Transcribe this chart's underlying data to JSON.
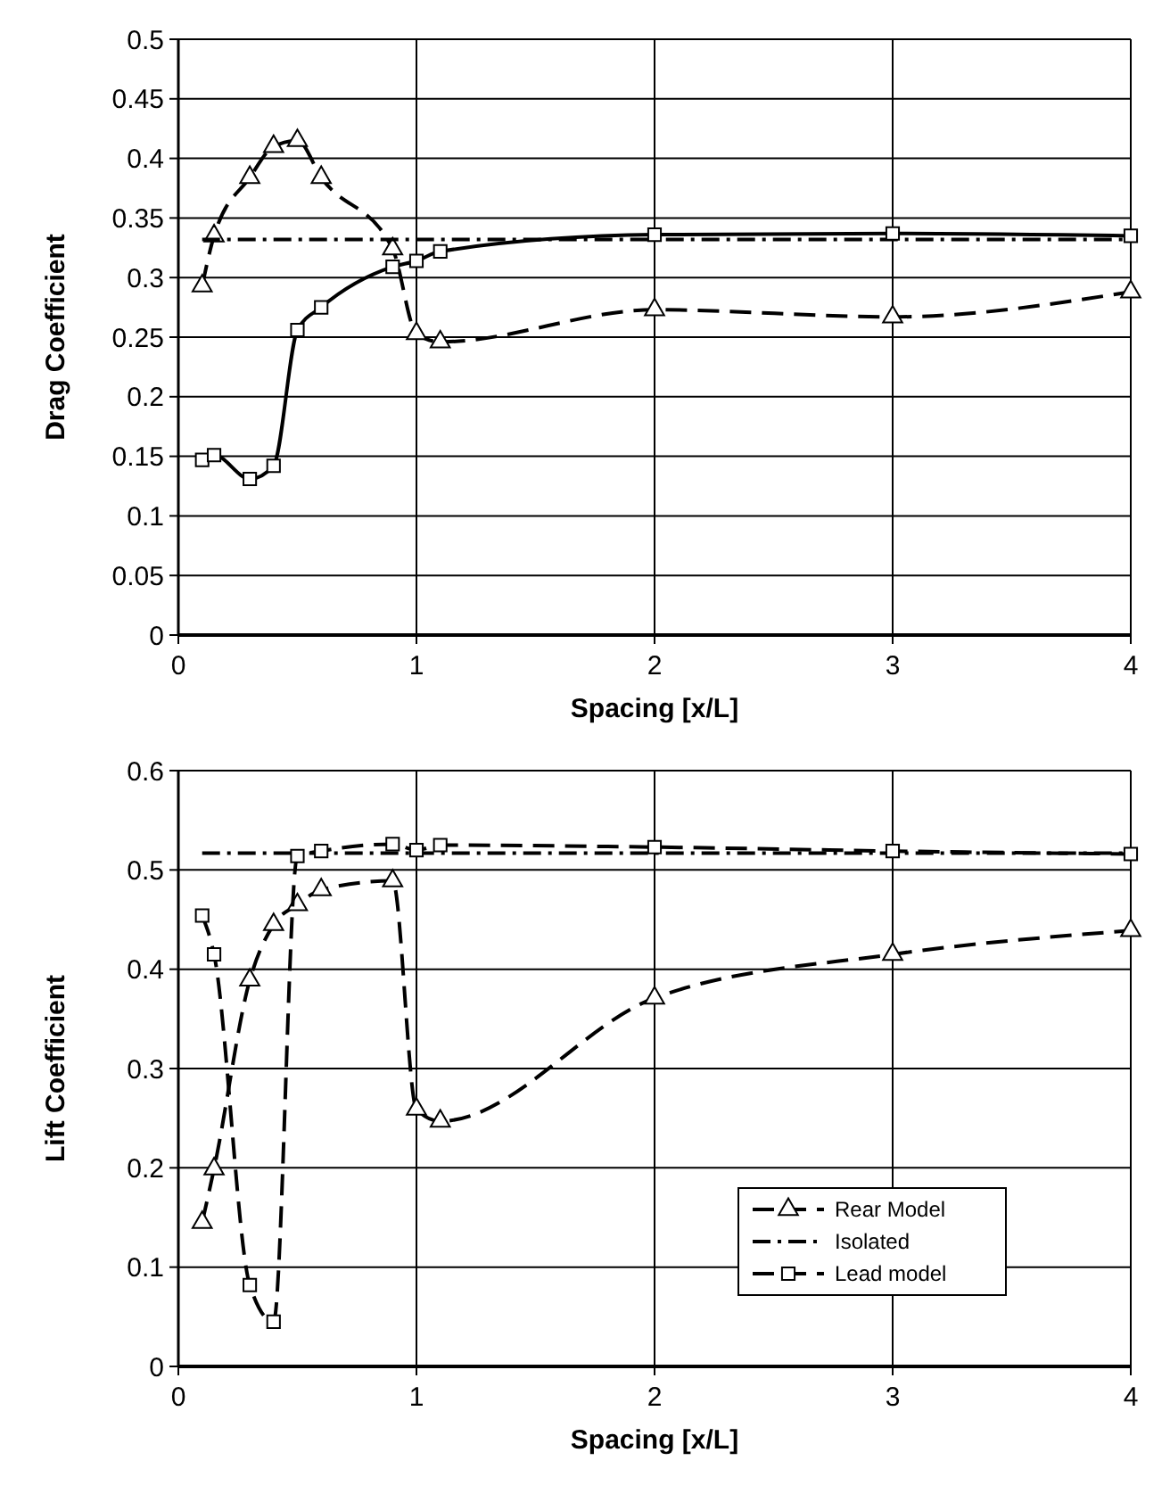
{
  "chart_data": [
    {
      "type": "line",
      "xlabel": "Spacing [x/L]",
      "ylabel": "Drag Coefficient",
      "xlim": [
        0,
        4
      ],
      "xticks": [
        0,
        1,
        2,
        3,
        4
      ],
      "ylim": [
        0,
        0.5
      ],
      "yticks": [
        0,
        0.05,
        0.1,
        0.15,
        0.2,
        0.25,
        0.3,
        0.35,
        0.4,
        0.45,
        0.5
      ],
      "grid": true,
      "legend": false,
      "series": [
        {
          "color": "#000000",
          "marker": "triangle",
          "line_style": "dashed",
          "x": [
            0.1,
            0.15,
            0.3,
            0.4,
            0.5,
            0.6,
            0.9,
            1,
            1.1,
            2,
            3,
            4
          ],
          "values": [
            0.293,
            0.335,
            0.384,
            0.41,
            0.415,
            0.384,
            0.324,
            0.253,
            0.246,
            0.273,
            0.267,
            0.288
          ]
        },
        {
          "color": "#000000",
          "marker": "none",
          "line_style": "dashdot",
          "x": [
            0.1,
            4
          ],
          "values": [
            0.332,
            0.332
          ]
        },
        {
          "color": "#000000",
          "marker": "square",
          "line_style": "solid",
          "x": [
            0.1,
            0.15,
            0.3,
            0.4,
            0.5,
            0.6,
            0.9,
            1,
            1.1,
            2,
            3,
            4
          ],
          "values": [
            0.147,
            0.151,
            0.131,
            0.142,
            0.256,
            0.275,
            0.309,
            0.314,
            0.322,
            0.336,
            0.337,
            0.335
          ]
        }
      ]
    },
    {
      "type": "line",
      "xlabel": "Spacing [x/L]",
      "ylabel": "Lift Coefficient",
      "xlim": [
        0,
        4
      ],
      "xticks": [
        0,
        1,
        2,
        3,
        4
      ],
      "ylim": [
        0,
        0.6
      ],
      "yticks": [
        0,
        0.1,
        0.2,
        0.3,
        0.4,
        0.5,
        0.6
      ],
      "grid": true,
      "legend": "bottom right",
      "series": [
        {
          "name": "Rear Model",
          "color": "#000000",
          "marker": "triangle",
          "line_style": "dashed",
          "x": [
            0.1,
            0.15,
            0.3,
            0.4,
            0.5,
            0.6,
            0.9,
            1,
            1.1,
            2,
            3,
            4
          ],
          "values": [
            0.145,
            0.199,
            0.389,
            0.445,
            0.465,
            0.48,
            0.489,
            0.259,
            0.247,
            0.371,
            0.415,
            0.439
          ]
        },
        {
          "name": "Isolated",
          "color": "#000000",
          "marker": "none",
          "line_style": "dashdot",
          "x": [
            0.1,
            4
          ],
          "values": [
            0.517,
            0.517
          ]
        },
        {
          "name": "Lead model",
          "color": "#000000",
          "marker": "square",
          "line_style": "dashed",
          "x": [
            0.1,
            0.15,
            0.3,
            0.4,
            0.5,
            0.6,
            0.9,
            1,
            1.1,
            2,
            3,
            4
          ],
          "values": [
            0.454,
            0.415,
            0.082,
            0.045,
            0.514,
            0.519,
            0.526,
            0.52,
            0.525,
            0.523,
            0.519,
            0.516
          ]
        }
      ]
    }
  ]
}
